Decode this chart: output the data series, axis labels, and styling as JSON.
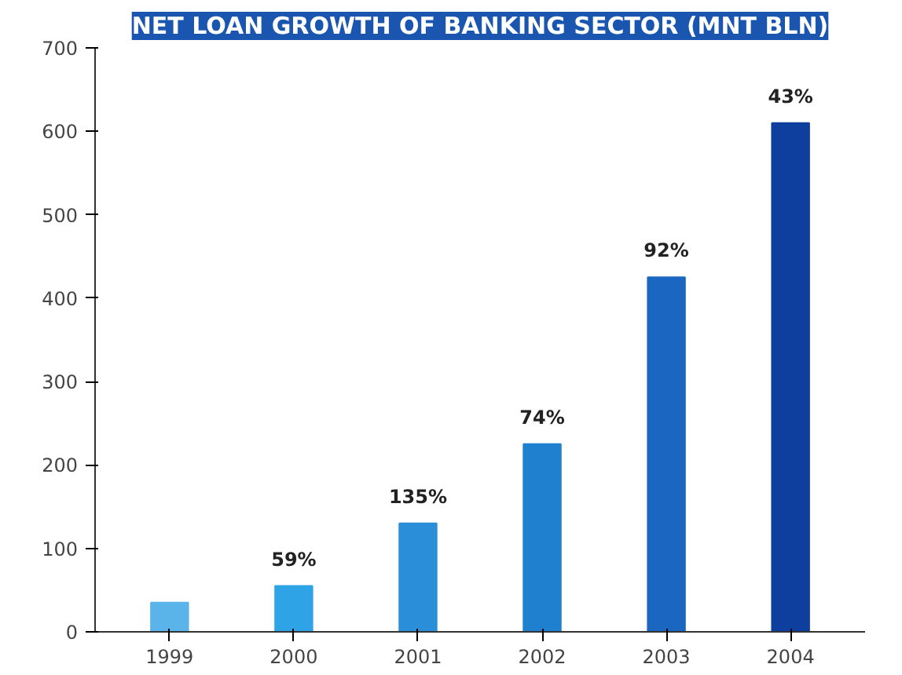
{
  "chart_data": {
    "type": "bar",
    "title": "NET LOAN GROWTH OF BANKING SECTOR (MNT BLN)",
    "categories": [
      "1999",
      "2000",
      "2001",
      "2002",
      "2003",
      "2004"
    ],
    "values": [
      35,
      55,
      130,
      225,
      425,
      610
    ],
    "colors": [
      "#5ab4ea",
      "#2ea4e6",
      "#2a8fd8",
      "#2080d0",
      "#1a66c0",
      "#0f3f9e"
    ],
    "ylim": [
      0,
      700
    ],
    "yticks": [
      0,
      100,
      200,
      300,
      400,
      500,
      600,
      700
    ],
    "grid": false,
    "annotations": [
      {
        "text": "59%",
        "x": "2000",
        "y": 55
      },
      {
        "text": "135%",
        "x": "2001",
        "y": 130
      },
      {
        "text": "74%",
        "x": "2002",
        "y": 225
      },
      {
        "text": "92%",
        "x": "2003",
        "y": 425
      },
      {
        "text": "43%",
        "x": "2004",
        "y": 610
      }
    ]
  }
}
